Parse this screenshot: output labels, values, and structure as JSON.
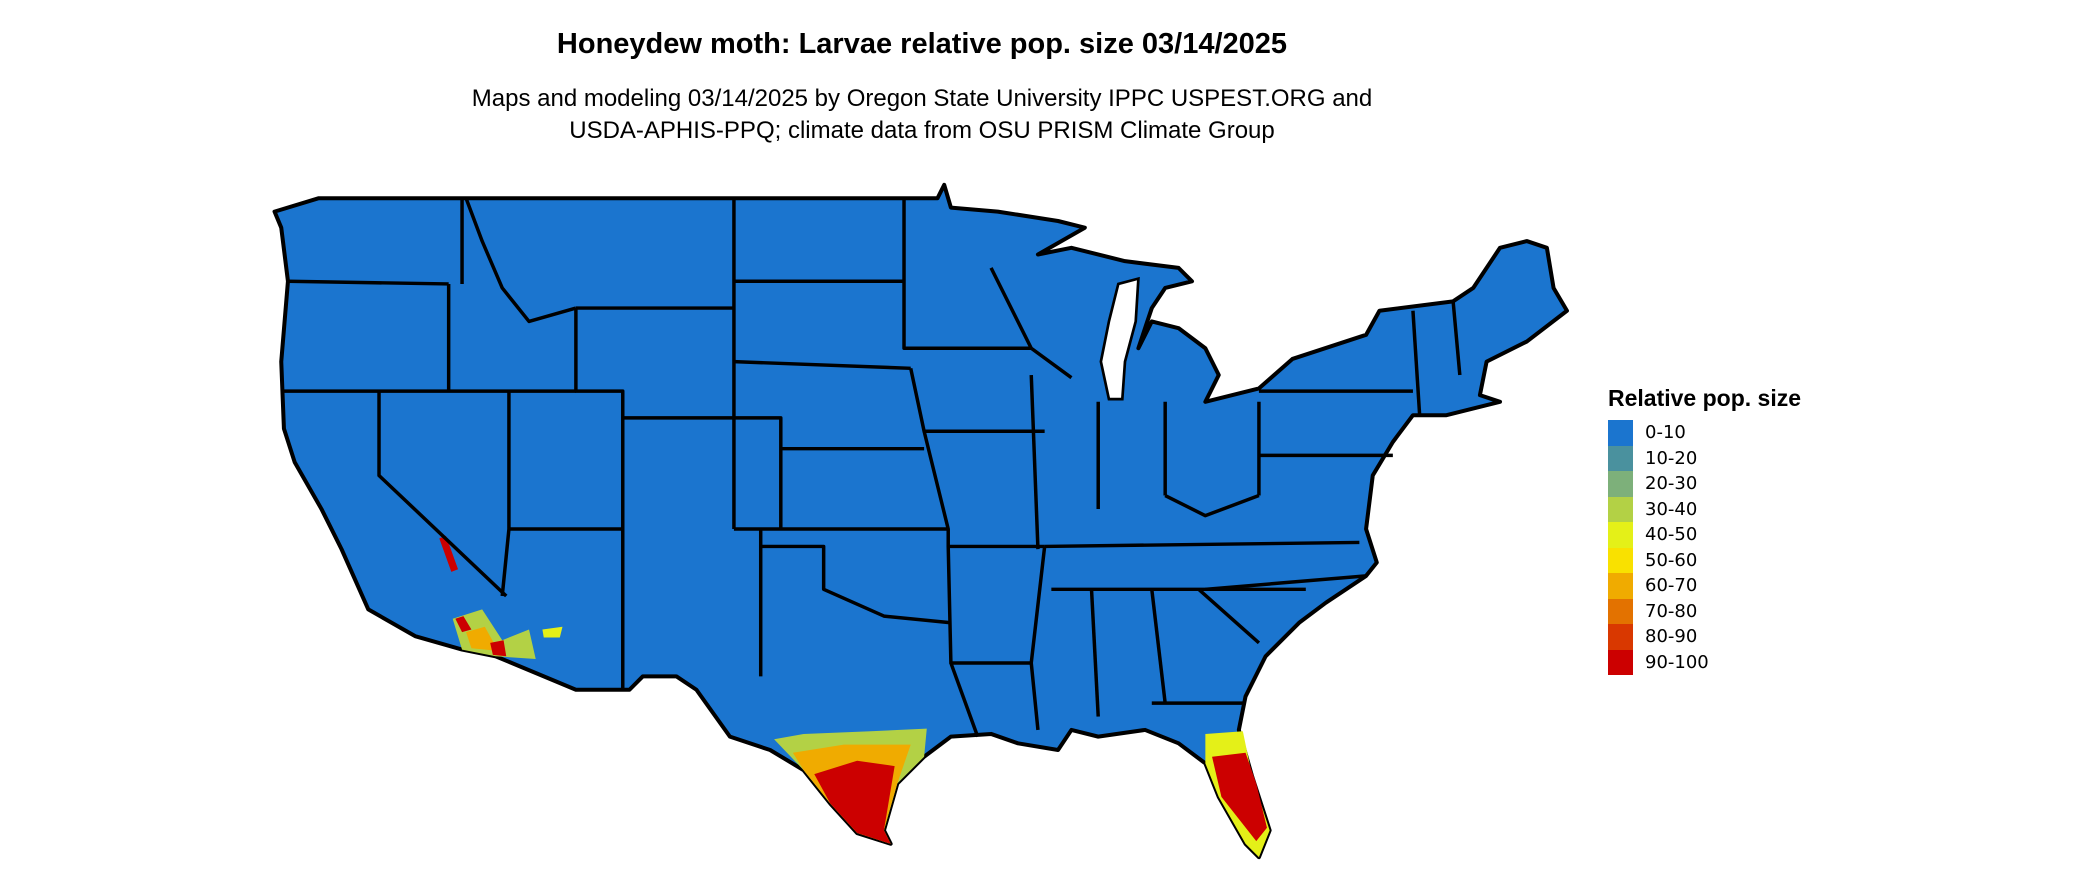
{
  "title": "Honeydew moth: Larvae relative pop. size 03/14/2025",
  "subtitle_line1": "Maps and modeling 03/14/2025 by Oregon State University IPPC USPEST.ORG and",
  "subtitle_line2": "USDA-APHIS-PPQ; climate data from OSU PRISM Climate Group",
  "map": {
    "region": "Contiguous United States",
    "base_color": "#1b75cf",
    "border_color": "#000000",
    "hotspots": [
      "southern Texas",
      "southern Florida",
      "southern California / Arizona"
    ]
  },
  "legend": {
    "title": "Relative pop. size",
    "items": [
      {
        "label": "0-10",
        "color": "#1b75cf"
      },
      {
        "label": "10-20",
        "color": "#4a919e"
      },
      {
        "label": "20-30",
        "color": "#7db07a"
      },
      {
        "label": "30-40",
        "color": "#b3d145"
      },
      {
        "label": "40-50",
        "color": "#e4f018"
      },
      {
        "label": "50-60",
        "color": "#f9e100"
      },
      {
        "label": "60-70",
        "color": "#f0ab00"
      },
      {
        "label": "70-80",
        "color": "#e37200"
      },
      {
        "label": "80-90",
        "color": "#d93800"
      },
      {
        "label": "90-100",
        "color": "#cc0000"
      }
    ]
  }
}
